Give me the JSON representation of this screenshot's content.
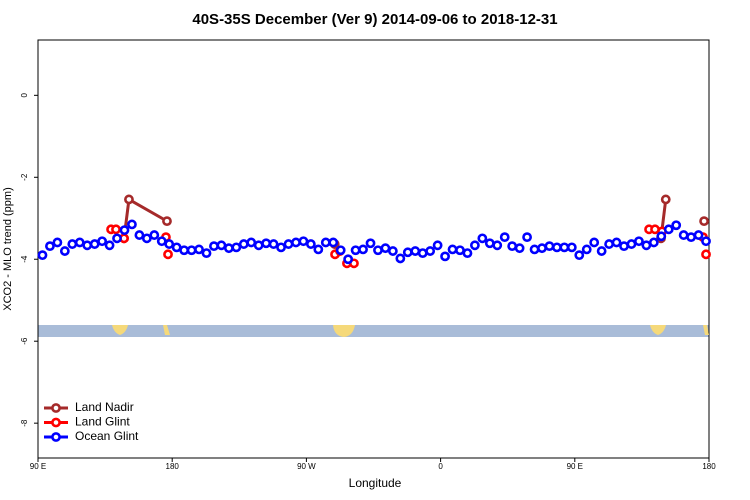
{
  "chart_data": {
    "type": "line",
    "title": "40S-35S December (Ver 9)   2014-09-06 to 2018-12-31",
    "xlabel": "Longitude",
    "ylabel": "XCO2 - MLO trend (ppm)",
    "xlim": [
      90,
      540
    ],
    "ylim": [
      -8.85,
      1.35
    ],
    "xticks": [
      {
        "value": 90,
        "label": "90 E"
      },
      {
        "value": 180,
        "label": "180"
      },
      {
        "value": 270,
        "label": "90 W"
      },
      {
        "value": 360,
        "label": "0"
      },
      {
        "value": 450,
        "label": "90 E"
      },
      {
        "value": 540,
        "label": "180"
      }
    ],
    "yticks": [
      0,
      -2,
      -4,
      -6,
      -8
    ],
    "legend": "bottom-left",
    "series": [
      {
        "name": "Land Nadir",
        "color": "#a52a2a",
        "line": true,
        "x": [
          147.7,
          151,
          176.5,
          null,
          289,
          null,
          507.8,
          511,
          null,
          536.7
        ],
        "values": [
          -3.49,
          -2.54,
          -3.07,
          null,
          -3.63,
          null,
          -3.49,
          -2.54,
          null,
          -3.07
        ]
      },
      {
        "name": "Land Glint",
        "color": "#ff0000",
        "line": false,
        "x": [
          139,
          142.3,
          147.7,
          175.8,
          177.2,
          289.2,
          292.5,
          297.2,
          301.9,
          499.8,
          503.8,
          508.5,
          536,
          538
        ],
        "values": [
          -3.27,
          -3.27,
          -3.49,
          -3.46,
          -3.88,
          -3.88,
          -3.8,
          -4.1,
          -4.1,
          -3.27,
          -3.27,
          -3.32,
          -3.46,
          -3.88
        ]
      },
      {
        "name": "Ocean Glint",
        "color": "#0000ff",
        "line": false,
        "x": [
          93,
          98,
          103,
          108,
          113,
          118,
          123,
          128,
          133,
          138,
          143,
          148,
          153,
          158,
          163,
          168,
          173,
          178,
          183,
          188,
          193,
          198,
          203,
          208,
          213,
          218,
          223,
          228,
          233,
          238,
          243,
          248,
          253,
          258,
          263,
          268,
          273,
          278,
          283,
          288,
          293,
          298,
          303,
          308,
          313,
          318,
          323,
          328,
          333,
          338,
          343,
          348,
          353,
          358,
          363,
          368,
          373,
          378,
          383,
          388,
          393,
          398,
          403,
          408,
          413,
          418,
          423,
          428,
          433,
          438,
          443,
          448,
          453,
          458,
          463,
          468,
          473,
          478,
          483,
          488,
          493,
          498,
          503,
          508,
          513,
          518,
          523,
          528,
          533,
          538
        ],
        "values": [
          -3.9,
          -3.68,
          -3.59,
          -3.8,
          -3.63,
          -3.59,
          -3.66,
          -3.63,
          -3.56,
          -3.66,
          -3.49,
          -3.29,
          -3.15,
          -3.41,
          -3.49,
          -3.41,
          -3.56,
          -3.63,
          -3.71,
          -3.78,
          -3.78,
          -3.76,
          -3.85,
          -3.68,
          -3.66,
          -3.73,
          -3.71,
          -3.63,
          -3.59,
          -3.66,
          -3.61,
          -3.63,
          -3.71,
          -3.63,
          -3.59,
          -3.56,
          -3.63,
          -3.76,
          -3.59,
          -3.59,
          -3.78,
          -4.0,
          -3.78,
          -3.76,
          -3.61,
          -3.78,
          -3.73,
          -3.8,
          -3.98,
          -3.83,
          -3.8,
          -3.85,
          -3.8,
          -3.66,
          -3.93,
          -3.76,
          -3.78,
          -3.85,
          -3.66,
          -3.49,
          -3.61,
          -3.66,
          -3.46,
          -3.68,
          -3.73,
          -3.46,
          -3.76,
          -3.73,
          -3.68,
          -3.71,
          -3.71,
          -3.71,
          -3.9,
          -3.76,
          -3.59,
          -3.8,
          -3.63,
          -3.59,
          -3.68,
          -3.63,
          -3.56,
          -3.66,
          -3.59,
          -3.44,
          -3.27,
          -3.17,
          -3.41,
          -3.46,
          -3.41,
          -3.56
        ]
      }
    ]
  }
}
